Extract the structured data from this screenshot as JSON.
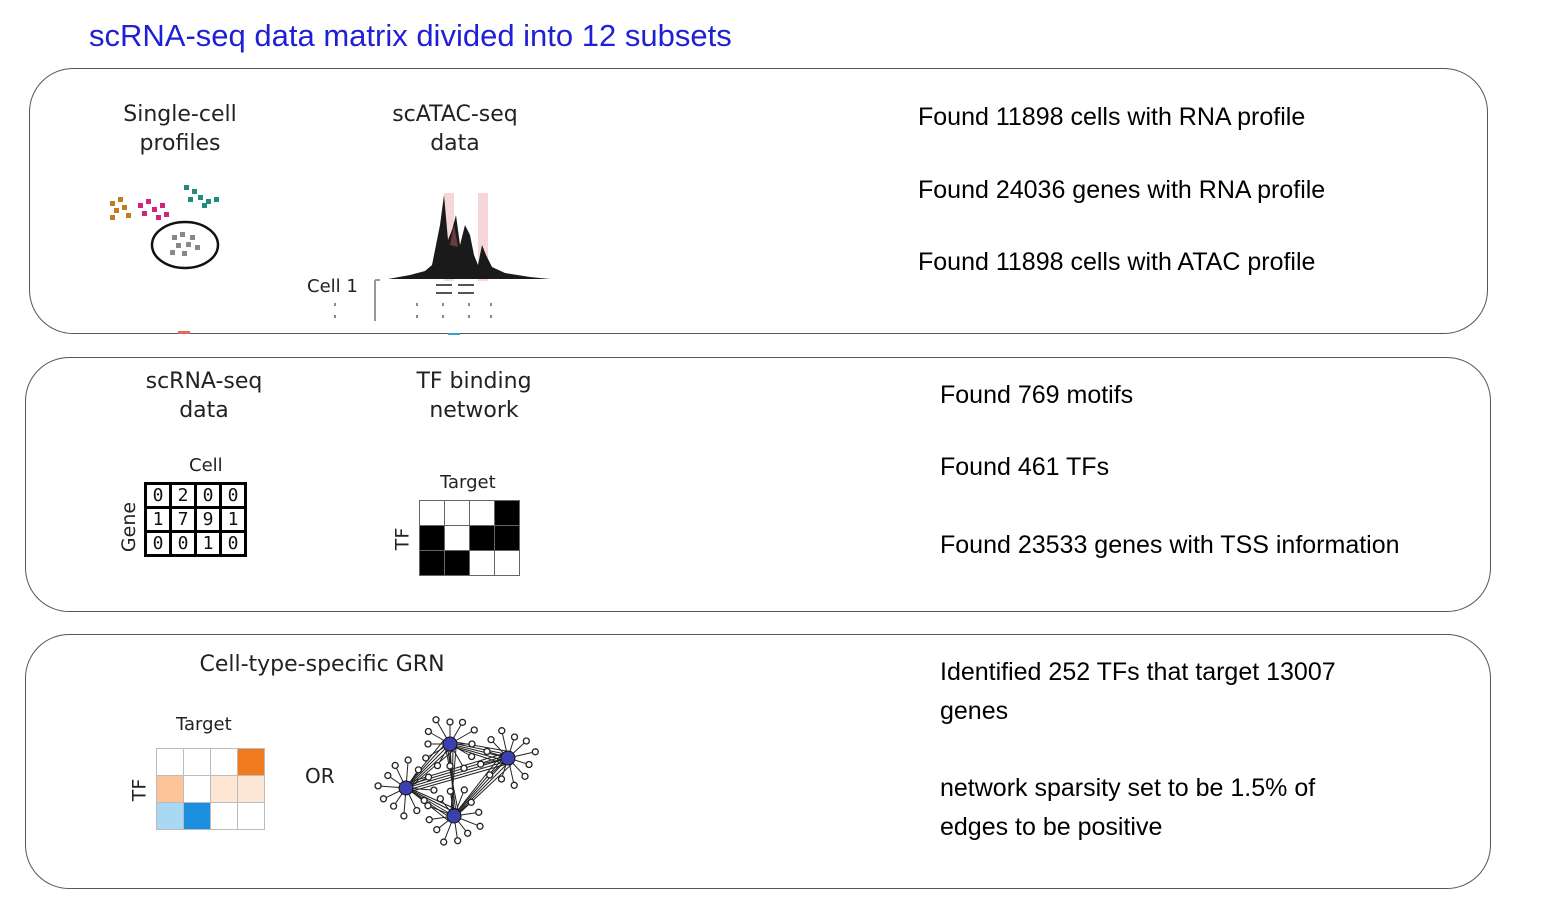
{
  "title": "scRNA-seq data matrix divided into 12 subsets",
  "panel1": {
    "fig_labels": [
      "Single-cell\nprofiles",
      "scATAC-seq\ndata"
    ],
    "cell_label": "Cell 1",
    "stats": [
      "Found 11898 cells with RNA profile",
      "Found 24036 genes with RNA profile",
      "Found 11898 cells with ATAC profile"
    ]
  },
  "panel2": {
    "fig_labels": [
      "scRNA-seq\ndata",
      "TF binding\nnetwork"
    ],
    "matrix": {
      "col_label": "Cell",
      "row_label": "Gene",
      "rows": [
        [
          "0",
          "2",
          "0",
          "0"
        ],
        [
          "1",
          "7",
          "9",
          "1"
        ],
        [
          "0",
          "0",
          "1",
          "0"
        ]
      ]
    },
    "binding": {
      "col_label": "Target",
      "row_label": "TF",
      "grid": [
        [
          0,
          0,
          0,
          1
        ],
        [
          1,
          0,
          1,
          1
        ],
        [
          1,
          1,
          0,
          0
        ]
      ]
    },
    "stats": [
      "Found 769 motifs",
      "Found 461 TFs",
      "Found 23533 genes with TSS information"
    ]
  },
  "panel3": {
    "fig_label": "Cell-type-specific GRN",
    "heatmap": {
      "col_label": "Target",
      "row_label": "TF",
      "colors": [
        [
          "#ffffff",
          "#ffffff",
          "#ffffff",
          "#f07a1e"
        ],
        [
          "#fdc49a",
          "#ffffff",
          "#fde6d4",
          "#fde6d4"
        ],
        [
          "#a9d8f5",
          "#1b8fe0",
          "#ffffff",
          "#ffffff"
        ]
      ]
    },
    "or_label": "OR",
    "stats": [
      "Identified 252 TFs that target 13007\ngenes",
      "network sparsity set to be 1.5% of\nedges to be positive"
    ]
  },
  "colors": {
    "title": "#1f1fd6",
    "panel_border": "#555555",
    "node": "#3b3fb0"
  }
}
